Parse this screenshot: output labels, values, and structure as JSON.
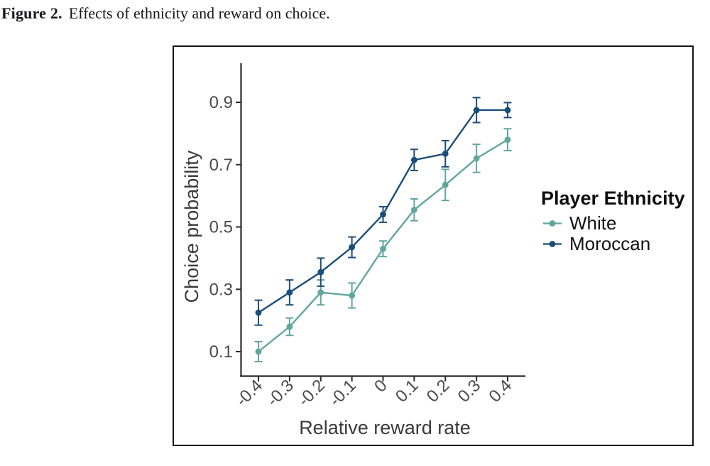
{
  "caption": {
    "label": "Figure 2.",
    "text": "Effects of ethnicity and reward on choice."
  },
  "chart_data": {
    "type": "line",
    "xlabel": "Relative reward rate",
    "ylabel": "Choice probability",
    "legend_title": "Player Ethnicity",
    "legend_position": "right",
    "grid": false,
    "error_bars": true,
    "x_categories": [
      "-0.4",
      "-0.3",
      "-0.2",
      "-0.1",
      "0",
      "0.1",
      "0.2",
      "0.3",
      "0.4"
    ],
    "x_values": [
      -0.4,
      -0.3,
      -0.2,
      -0.1,
      0,
      0.1,
      0.2,
      0.3,
      0.4
    ],
    "y_ticks": [
      "0.1",
      "0.3",
      "0.5",
      "0.7",
      "0.9"
    ],
    "y_tick_values": [
      0.1,
      0.3,
      0.5,
      0.7,
      0.9
    ],
    "ylim": [
      0.03,
      0.97
    ],
    "series": [
      {
        "name": "White",
        "color": "#60a69f",
        "values": [
          0.1,
          0.18,
          0.29,
          0.28,
          0.43,
          0.555,
          0.635,
          0.72,
          0.78
        ],
        "errors": [
          0.032,
          0.028,
          0.04,
          0.04,
          0.025,
          0.035,
          0.05,
          0.045,
          0.035
        ]
      },
      {
        "name": "Moroccan",
        "color": "#1b4d79",
        "values": [
          0.225,
          0.29,
          0.355,
          0.435,
          0.54,
          0.715,
          0.735,
          0.875,
          0.875
        ],
        "errors": [
          0.04,
          0.04,
          0.045,
          0.033,
          0.025,
          0.034,
          0.042,
          0.04,
          0.024
        ]
      }
    ]
  },
  "style": {
    "axis_color": "#2b2b2b",
    "tick_label_color": "#4a4a4a",
    "axis_title_color": "#3a3a3a",
    "frame_color": "#141414"
  }
}
